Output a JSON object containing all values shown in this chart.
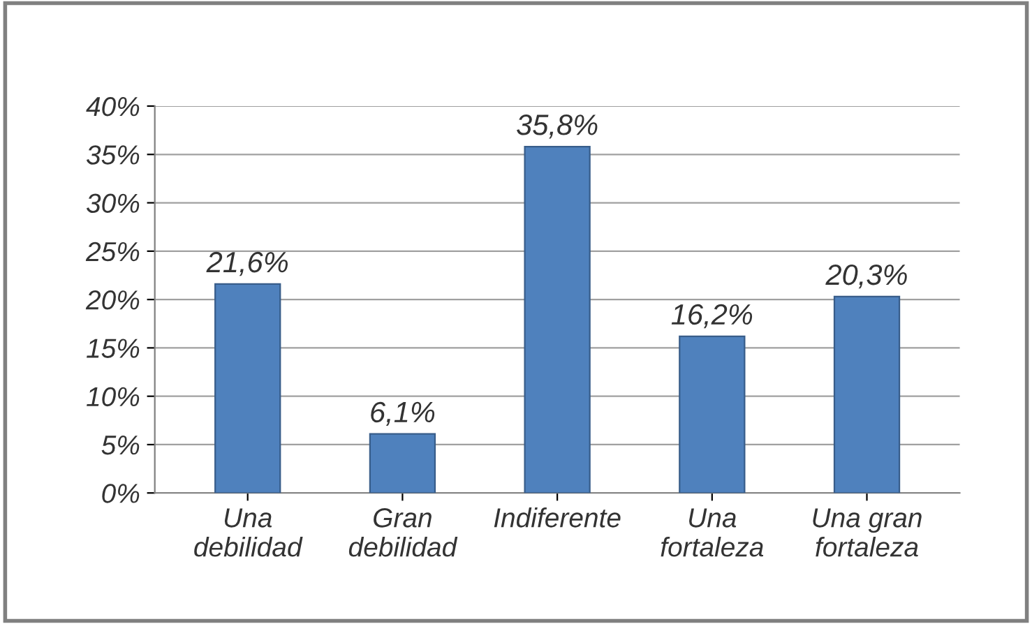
{
  "chart_data": {
    "type": "bar",
    "categories": [
      "Una\ndebilidad",
      "Gran\ndebilidad",
      "Indiferente",
      "Una\nfortaleza",
      "Una gran\nfortaleza"
    ],
    "values": [
      21.6,
      6.1,
      35.8,
      16.2,
      20.3
    ],
    "value_labels": [
      "21,6%",
      "6,1%",
      "35,8%",
      "16,2%",
      "20,3%"
    ],
    "color": "#4f81bd",
    "ylim": [
      0,
      40
    ],
    "yticks": [
      {
        "value": 0,
        "label": "0%"
      },
      {
        "value": 5,
        "label": "5%"
      },
      {
        "value": 10,
        "label": "10%"
      },
      {
        "value": 15,
        "label": "15%"
      },
      {
        "value": 20,
        "label": "20%"
      },
      {
        "value": 25,
        "label": "25%"
      },
      {
        "value": 30,
        "label": "30%"
      },
      {
        "value": 35,
        "label": "35%"
      },
      {
        "value": 40,
        "label": "40%"
      }
    ],
    "grid": "y"
  }
}
